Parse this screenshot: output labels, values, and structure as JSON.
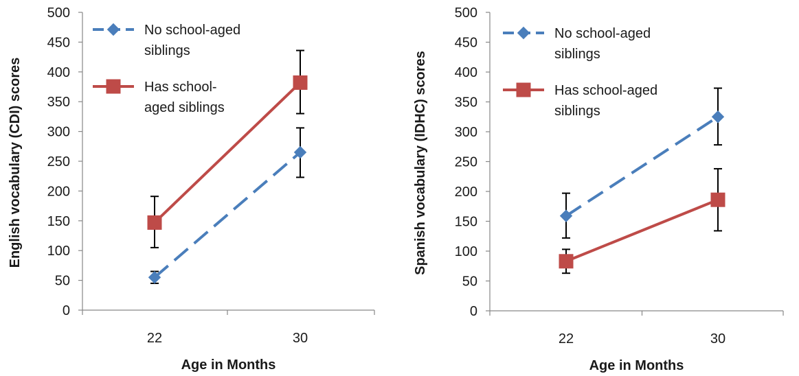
{
  "chart_data": [
    {
      "type": "line",
      "xlabel": "Age in Months",
      "ylabel": "English vocabulary (CDI) scores",
      "categories": [
        "22",
        "30"
      ],
      "ylim": [
        0,
        500
      ],
      "yticks": [
        0,
        50,
        100,
        150,
        200,
        250,
        300,
        350,
        400,
        450,
        500
      ],
      "grid": false,
      "legend_position": "top-left",
      "series": [
        {
          "name": "No school-aged siblings",
          "legend_lines": [
            "No school-aged",
            "siblings"
          ],
          "values": [
            55,
            265
          ],
          "error_low": [
            45,
            223
          ],
          "error_high": [
            65,
            306
          ],
          "color": "#4a7ebb",
          "marker": "diamond",
          "line_style": "dashed"
        },
        {
          "name": "Has school-aged siblings",
          "legend_lines": [
            "Has school-",
            "aged siblings"
          ],
          "values": [
            147,
            382
          ],
          "error_low": [
            105,
            330
          ],
          "error_high": [
            191,
            436
          ],
          "color": "#be4b48",
          "marker": "square",
          "line_style": "solid"
        }
      ]
    },
    {
      "type": "line",
      "xlabel": "Age in Months",
      "ylabel": "Spanish vocabulary (IDHC) scores",
      "categories": [
        "22",
        "30"
      ],
      "ylim": [
        0,
        500
      ],
      "yticks": [
        0,
        50,
        100,
        150,
        200,
        250,
        300,
        350,
        400,
        450,
        500
      ],
      "grid": false,
      "legend_position": "top-left",
      "series": [
        {
          "name": "No school-aged siblings",
          "legend_lines": [
            "No school-aged",
            "siblings"
          ],
          "values": [
            159,
            325
          ],
          "error_low": [
            122,
            278
          ],
          "error_high": [
            197,
            373
          ],
          "color": "#4a7ebb",
          "marker": "diamond",
          "line_style": "dashed"
        },
        {
          "name": "Has school-aged siblings",
          "legend_lines": [
            "Has school-aged",
            "siblings"
          ],
          "values": [
            83,
            186
          ],
          "error_low": [
            63,
            134
          ],
          "error_high": [
            103,
            238
          ],
          "color": "#be4b48",
          "marker": "square",
          "line_style": "solid"
        }
      ]
    }
  ]
}
